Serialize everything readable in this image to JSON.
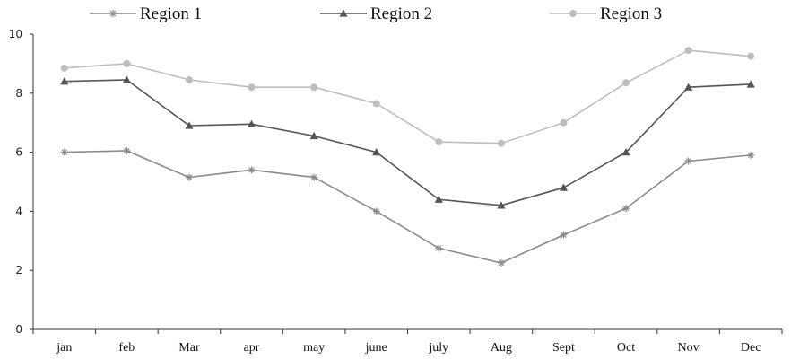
{
  "chart_data": {
    "type": "line",
    "categories": [
      "jan",
      "feb",
      "Mar",
      "apr",
      "may",
      "june",
      "july",
      "Aug",
      "Sept",
      "Oct",
      "Nov",
      "Dec"
    ],
    "ylim": [
      0,
      10
    ],
    "yticks": [
      0,
      2,
      4,
      6,
      8,
      10
    ],
    "grid": false,
    "legend": "top",
    "series": [
      {
        "name": "Region 1",
        "marker": "star",
        "color": "#8a8a8a",
        "values": [
          6.0,
          6.05,
          5.15,
          5.4,
          5.15,
          4.0,
          2.75,
          2.25,
          3.2,
          4.1,
          5.7,
          5.9
        ]
      },
      {
        "name": "Region 2",
        "marker": "triangle",
        "color": "#555555",
        "values": [
          8.4,
          8.45,
          6.9,
          6.95,
          6.55,
          6.0,
          4.4,
          4.2,
          4.8,
          6.0,
          8.2,
          8.3
        ]
      },
      {
        "name": "Region 3",
        "marker": "circle",
        "color": "#bdbdbd",
        "values": [
          8.85,
          9.0,
          8.45,
          8.2,
          8.2,
          7.65,
          6.35,
          6.3,
          7.0,
          8.35,
          9.45,
          9.25
        ]
      }
    ]
  }
}
